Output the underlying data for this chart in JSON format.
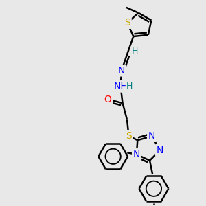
{
  "background_color": "#e8e8e8",
  "atom_colors": {
    "C": "#000000",
    "N": "#0000ff",
    "O": "#ff0000",
    "S": "#ccaa00",
    "H": "#008080"
  },
  "bond_color": "#000000",
  "bond_width": 1.8,
  "font_size_atom": 10
}
